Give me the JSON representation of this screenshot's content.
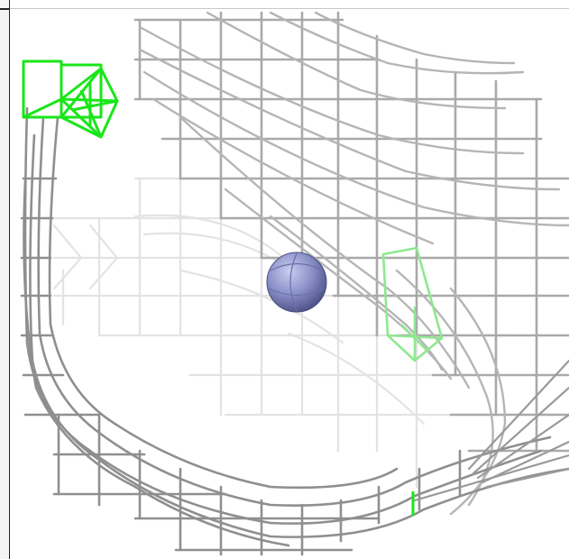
{
  "scene": {
    "background": "#ffffff",
    "mesh_color_near": "#8c8c8c",
    "mesh_color_far": "#e6e6e6",
    "selection_color": "#19e619",
    "selection_color_faded": "#8fe88f",
    "sphere_color": "#8a90c8",
    "objects": {
      "mesh": "wireframe-mesh",
      "cursor": "sphere-marker",
      "camera_a": "camera-frustum-icon",
      "camera_b": "camera-frustum-icon"
    }
  }
}
